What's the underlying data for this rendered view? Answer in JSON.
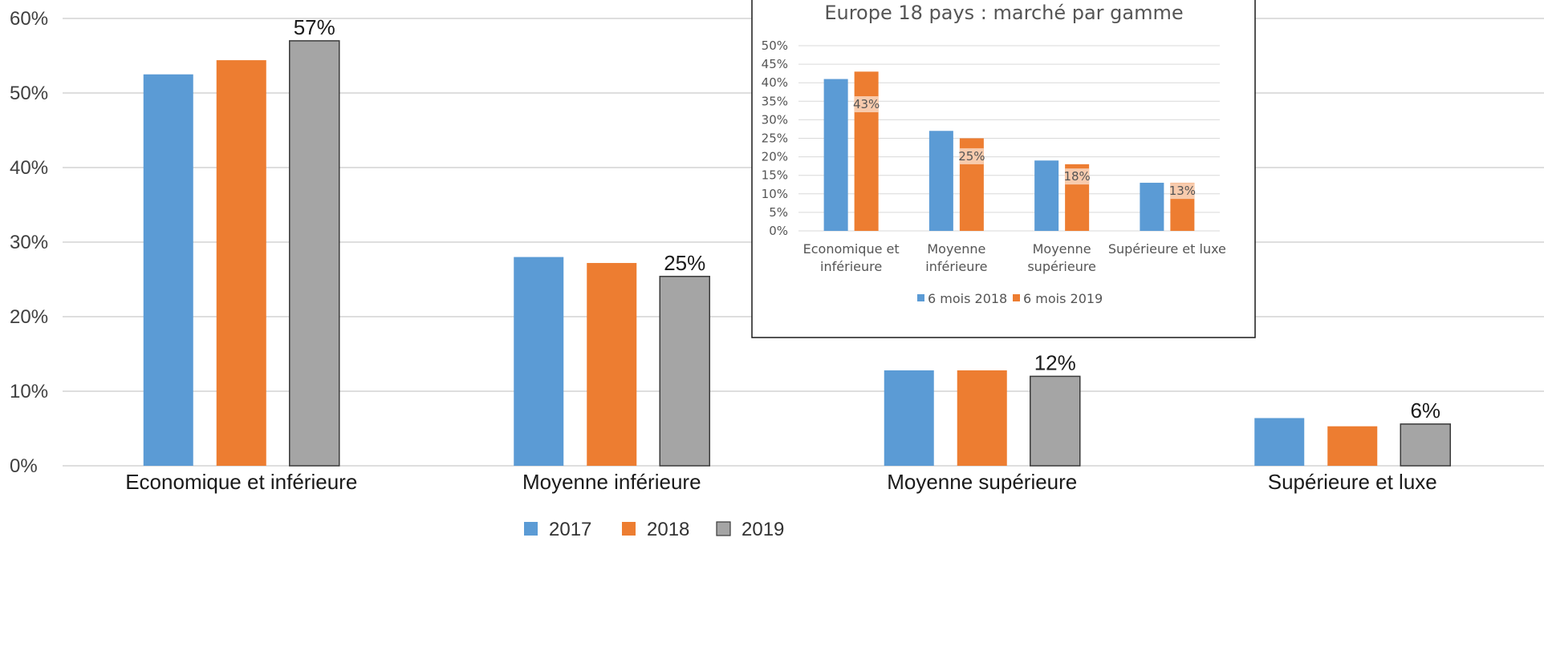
{
  "chart_data": [
    {
      "type": "bar",
      "title": "",
      "xlabel": "",
      "ylabel": "",
      "ylim": [
        0,
        60
      ],
      "yticks": [
        "0%",
        "10%",
        "20%",
        "30%",
        "40%",
        "50%",
        "60%"
      ],
      "grid": true,
      "legend_position": "bottom",
      "categories": [
        "Economique et inférieure",
        "Moyenne inférieure",
        "Moyenne supérieure",
        "Supérieure et luxe"
      ],
      "series": [
        {
          "name": "2017",
          "color": "#5B9BD5",
          "values": [
            52.5,
            28.0,
            12.8,
            6.4
          ]
        },
        {
          "name": "2018",
          "color": "#ED7D31",
          "values": [
            54.4,
            27.2,
            12.8,
            5.3
          ]
        },
        {
          "name": "2019",
          "color": "#A5A5A5",
          "values": [
            57.0,
            25.4,
            12.0,
            5.6
          ],
          "labels": [
            "57%",
            "25%",
            "12%",
            "6%"
          ]
        }
      ]
    },
    {
      "type": "bar",
      "title": "Europe 18 pays : marché par gamme",
      "xlabel": "",
      "ylabel": "",
      "ylim": [
        0,
        50
      ],
      "yticks": [
        "0%",
        "5%",
        "10%",
        "15%",
        "20%",
        "25%",
        "30%",
        "35%",
        "40%",
        "45%",
        "50%"
      ],
      "grid": true,
      "legend_position": "bottom",
      "categories": [
        [
          "Economique et",
          "inférieure"
        ],
        [
          "Moyenne",
          "inférieure"
        ],
        [
          "Moyenne",
          "supérieure"
        ],
        [
          "Supérieure et luxe"
        ]
      ],
      "series": [
        {
          "name": "6 mois 2018",
          "color": "#5B9BD5",
          "values": [
            41,
            27,
            19,
            13
          ]
        },
        {
          "name": "6 mois 2019",
          "color": "#ED7D31",
          "values": [
            43,
            25,
            18,
            13
          ],
          "labels": [
            "43%",
            "25%",
            "18%",
            "13%"
          ]
        }
      ]
    }
  ]
}
